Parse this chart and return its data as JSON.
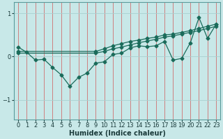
{
  "xlabel": "Humidex (Indice chaleur)",
  "background_color": "#c8e8e8",
  "line_color": "#1a6b5a",
  "grid_color_v": "#d07070",
  "grid_color_h": "#a8d0d0",
  "xlim": [
    -0.5,
    23.5
  ],
  "ylim": [
    -1.45,
    1.25
  ],
  "yticks": [
    -1,
    0,
    1
  ],
  "xticks": [
    0,
    1,
    2,
    3,
    4,
    5,
    6,
    7,
    8,
    9,
    10,
    11,
    12,
    13,
    14,
    15,
    16,
    17,
    18,
    19,
    20,
    21,
    22,
    23
  ],
  "zigzag_x": [
    0,
    1,
    2,
    3,
    4,
    5,
    6,
    7,
    8,
    9,
    10,
    11,
    12,
    13,
    14,
    15,
    16,
    17,
    18,
    19,
    20,
    21,
    22,
    23
  ],
  "zigzag_y": [
    0.22,
    0.1,
    -0.08,
    -0.06,
    -0.25,
    -0.42,
    -0.68,
    -0.48,
    -0.38,
    -0.15,
    -0.12,
    0.05,
    0.08,
    0.2,
    0.25,
    0.23,
    0.25,
    0.35,
    -0.08,
    -0.04,
    0.32,
    0.9,
    0.42,
    0.75
  ],
  "trend1_x": [
    0,
    9,
    10,
    11,
    12,
    13,
    14,
    15,
    16,
    17,
    18,
    19,
    20,
    21,
    22,
    23
  ],
  "trend1_y": [
    0.12,
    0.12,
    0.18,
    0.25,
    0.3,
    0.35,
    0.38,
    0.42,
    0.45,
    0.5,
    0.52,
    0.56,
    0.6,
    0.65,
    0.7,
    0.75
  ],
  "trend2_x": [
    0,
    9,
    10,
    11,
    12,
    13,
    14,
    15,
    16,
    17,
    18,
    19,
    20,
    21,
    22,
    23
  ],
  "trend2_y": [
    0.08,
    0.08,
    0.12,
    0.18,
    0.22,
    0.27,
    0.32,
    0.36,
    0.4,
    0.45,
    0.48,
    0.52,
    0.56,
    0.6,
    0.65,
    0.7
  ],
  "marker_size": 2.5,
  "line_width": 0.9,
  "tick_fontsize": 6,
  "xlabel_fontsize": 7
}
